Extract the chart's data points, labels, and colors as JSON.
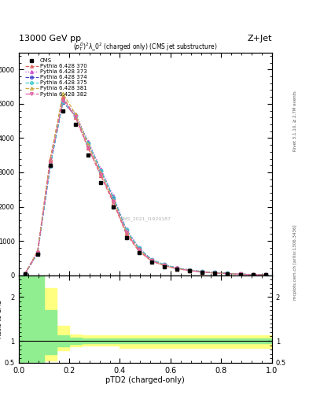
{
  "title_top": "13000 GeV pp",
  "title_right": "Z+Jet",
  "plot_title": "$(p_T^D)^2\\lambda\\_0^2$ (charged only) (CMS jet substructure)",
  "xlabel": "pTD2 (charged-only)",
  "watermark": "CMS_2021_I1920187",
  "rivet_label": "Rivet 3.1.10, ≥ 2.7M events",
  "mcplots_label": "mcplots.cern.ch [arXiv:1306.3436]",
  "xlim": [
    0,
    1
  ],
  "ylim_main": [
    0,
    6500
  ],
  "ylim_ratio": [
    0.5,
    2.5
  ],
  "cms_data_x": [
    0.025,
    0.075,
    0.125,
    0.175,
    0.225,
    0.275,
    0.325,
    0.375,
    0.425,
    0.475,
    0.525,
    0.575,
    0.625,
    0.675,
    0.725,
    0.775,
    0.825,
    0.875,
    0.925,
    0.975
  ],
  "cms_data_y": [
    30,
    600,
    3200,
    4800,
    4400,
    3500,
    2700,
    2000,
    1100,
    650,
    380,
    250,
    170,
    120,
    80,
    60,
    40,
    25,
    15,
    8
  ],
  "cms_color": "black",
  "cms_marker": "s",
  "cms_markersize": 3,
  "cms_label": "CMS",
  "series": [
    {
      "label": "Pythia 6.428 370",
      "color": "#e06060",
      "linestyle": "--",
      "marker": "^",
      "markerfacecolor": "none",
      "x": [
        0.025,
        0.075,
        0.125,
        0.175,
        0.225,
        0.275,
        0.325,
        0.375,
        0.425,
        0.475,
        0.525,
        0.575,
        0.625,
        0.675,
        0.725,
        0.775,
        0.825,
        0.875,
        0.925,
        0.975
      ],
      "y": [
        40,
        700,
        3400,
        5200,
        4600,
        3700,
        2900,
        2100,
        1200,
        700,
        410,
        275,
        185,
        135,
        90,
        65,
        44,
        28,
        16,
        9
      ]
    },
    {
      "label": "Pythia 6.428 373",
      "color": "#cc44cc",
      "linestyle": ":",
      "marker": "^",
      "markerfacecolor": "none",
      "x": [
        0.025,
        0.075,
        0.125,
        0.175,
        0.225,
        0.275,
        0.325,
        0.375,
        0.425,
        0.475,
        0.525,
        0.575,
        0.625,
        0.675,
        0.725,
        0.775,
        0.825,
        0.875,
        0.925,
        0.975
      ],
      "y": [
        35,
        650,
        3200,
        5100,
        4700,
        3900,
        3100,
        2300,
        1350,
        800,
        460,
        310,
        210,
        155,
        103,
        75,
        51,
        32,
        18,
        10
      ]
    },
    {
      "label": "Pythia 6.428 374",
      "color": "#4444cc",
      "linestyle": "--",
      "marker": "o",
      "markerfacecolor": "none",
      "x": [
        0.025,
        0.075,
        0.125,
        0.175,
        0.225,
        0.275,
        0.325,
        0.375,
        0.425,
        0.475,
        0.525,
        0.575,
        0.625,
        0.675,
        0.725,
        0.775,
        0.825,
        0.875,
        0.925,
        0.975
      ],
      "y": [
        33,
        640,
        3180,
        5050,
        4650,
        3850,
        3050,
        2250,
        1320,
        785,
        450,
        305,
        207,
        152,
        101,
        73,
        50,
        31,
        18,
        10
      ]
    },
    {
      "label": "Pythia 6.428 375",
      "color": "#44cccc",
      "linestyle": "--",
      "marker": "o",
      "markerfacecolor": "none",
      "x": [
        0.025,
        0.075,
        0.125,
        0.175,
        0.225,
        0.275,
        0.325,
        0.375,
        0.425,
        0.475,
        0.525,
        0.575,
        0.625,
        0.675,
        0.725,
        0.775,
        0.825,
        0.875,
        0.925,
        0.975
      ],
      "y": [
        34,
        642,
        3185,
        5055,
        4655,
        3855,
        3055,
        2255,
        1325,
        788,
        452,
        307,
        208,
        153,
        102,
        74,
        50,
        31,
        18,
        10
      ]
    },
    {
      "label": "Pythia 6.428 381",
      "color": "#ccaa44",
      "linestyle": "--",
      "marker": "^",
      "markerfacecolor": "none",
      "x": [
        0.025,
        0.075,
        0.125,
        0.175,
        0.225,
        0.275,
        0.325,
        0.375,
        0.425,
        0.475,
        0.525,
        0.575,
        0.625,
        0.675,
        0.725,
        0.775,
        0.825,
        0.875,
        0.925,
        0.975
      ],
      "y": [
        38,
        680,
        3350,
        5300,
        4700,
        3800,
        2980,
        2180,
        1260,
        745,
        425,
        285,
        193,
        141,
        94,
        68,
        46,
        29,
        17,
        9
      ]
    },
    {
      "label": "Pythia 6.428 382",
      "color": "#e060a0",
      "linestyle": "-.",
      "marker": "v",
      "markerfacecolor": "none",
      "x": [
        0.025,
        0.075,
        0.125,
        0.175,
        0.225,
        0.275,
        0.325,
        0.375,
        0.425,
        0.475,
        0.525,
        0.575,
        0.625,
        0.675,
        0.725,
        0.775,
        0.825,
        0.875,
        0.925,
        0.975
      ],
      "y": [
        36,
        660,
        3280,
        5100,
        4620,
        3720,
        2940,
        2140,
        1240,
        735,
        418,
        280,
        190,
        138,
        92,
        66,
        45,
        28,
        16,
        9
      ]
    }
  ],
  "ratio_green_x": [
    0.0,
    0.05,
    0.1,
    0.15,
    0.2,
    0.25,
    0.3,
    0.35,
    0.4,
    0.45,
    0.5,
    0.55,
    0.6,
    0.65,
    0.7,
    0.75,
    0.8,
    0.85,
    0.9,
    0.95,
    1.0
  ],
  "ratio_green_lower": [
    0.5,
    0.5,
    0.7,
    0.88,
    0.93,
    0.95,
    0.95,
    0.95,
    0.95,
    0.95,
    0.95,
    0.95,
    0.95,
    0.95,
    0.95,
    0.95,
    0.95,
    0.95,
    0.95,
    0.95,
    0.95
  ],
  "ratio_green_upper": [
    2.5,
    2.5,
    1.7,
    1.12,
    1.07,
    1.06,
    1.06,
    1.06,
    1.06,
    1.06,
    1.06,
    1.06,
    1.06,
    1.06,
    1.06,
    1.06,
    1.06,
    1.06,
    1.06,
    1.06,
    1.06
  ],
  "ratio_yellow_x": [
    0.0,
    0.05,
    0.1,
    0.15,
    0.2,
    0.25,
    0.3,
    0.35,
    0.4,
    0.45,
    0.5,
    0.55,
    0.6,
    0.65,
    0.7,
    0.75,
    0.8,
    0.85,
    0.9,
    0.95,
    1.0
  ],
  "ratio_yellow_lower": [
    0.5,
    0.5,
    0.55,
    0.78,
    0.87,
    0.9,
    0.9,
    0.9,
    0.83,
    0.83,
    0.83,
    0.83,
    0.83,
    0.83,
    0.83,
    0.83,
    0.83,
    0.83,
    0.83,
    0.83,
    0.83
  ],
  "ratio_yellow_upper": [
    2.5,
    2.5,
    2.2,
    1.35,
    1.15,
    1.12,
    1.12,
    1.12,
    1.12,
    1.12,
    1.12,
    1.12,
    1.12,
    1.12,
    1.12,
    1.12,
    1.12,
    1.12,
    1.12,
    1.12,
    1.12
  ],
  "background_color": "white",
  "main_yticks": [
    0,
    1000,
    2000,
    3000,
    4000,
    5000,
    6000
  ],
  "ratio_yticks": [
    0.5,
    1.0,
    2.0
  ],
  "ratio_ytick_labels": [
    "0.5",
    "1",
    "2"
  ]
}
